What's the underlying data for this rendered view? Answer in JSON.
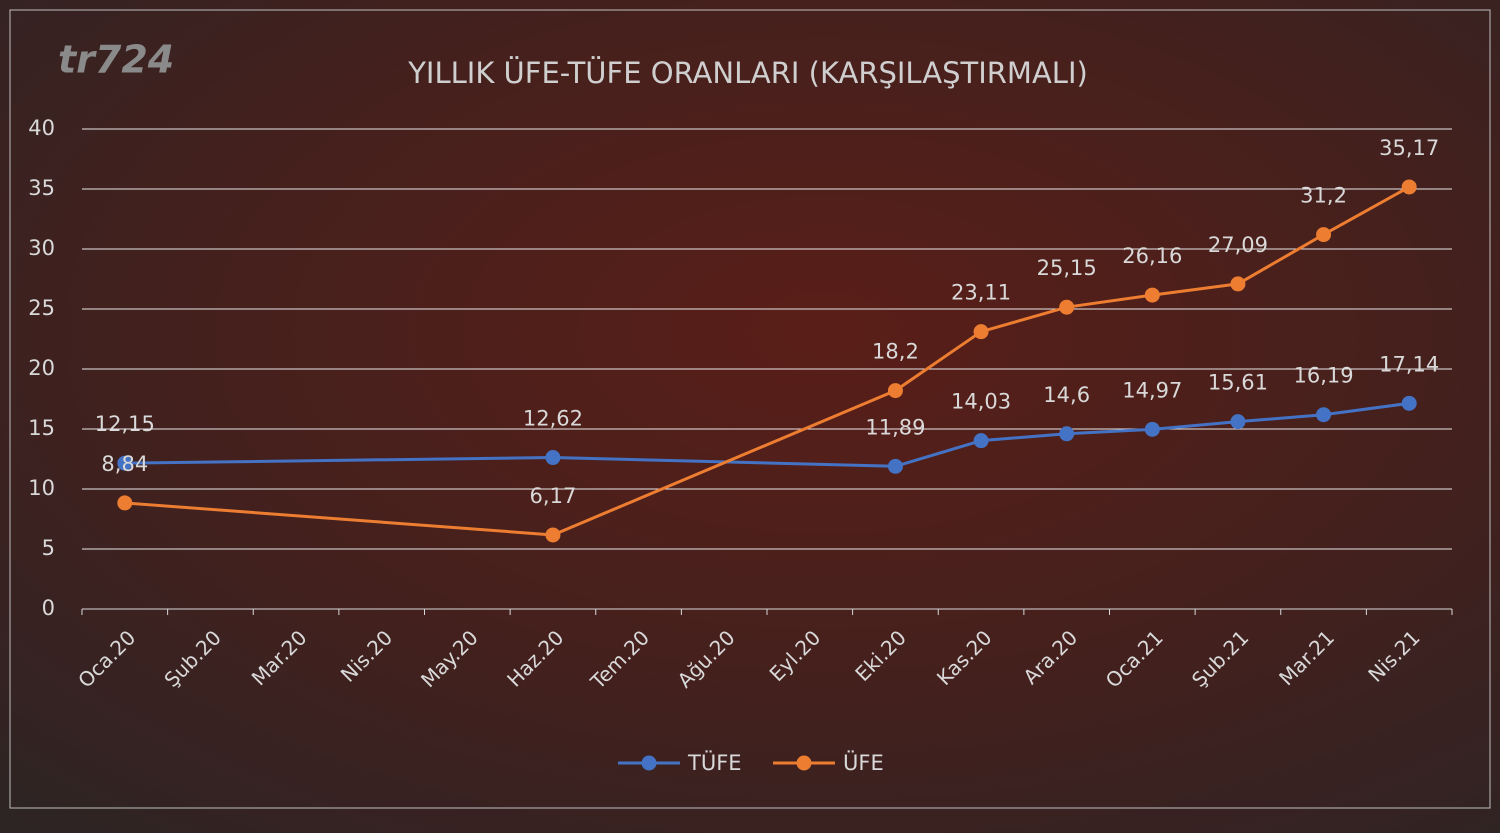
{
  "chart_data": {
    "type": "line",
    "title": "YILLIK ÜFE-TÜFE ORANLARI (KARŞILAŞTIRMALI)",
    "watermark": "tr724",
    "categories": [
      "Oca.20",
      "Şub.20",
      "Mar.20",
      "Nis.20",
      "May.20",
      "Haz.20",
      "Tem.20",
      "Ağu.20",
      "Eyl.20",
      "Eki.20",
      "Kas.20",
      "Ara.20",
      "Oca.21",
      "Şub.21",
      "Mar.21",
      "Nis.21"
    ],
    "series": [
      {
        "name": "TÜFE",
        "color": "#4472c4",
        "values": [
          12.15,
          null,
          null,
          null,
          null,
          12.62,
          null,
          null,
          null,
          11.89,
          14.03,
          14.6,
          14.97,
          15.61,
          16.19,
          17.14
        ],
        "value_labels": [
          "12,15",
          null,
          null,
          null,
          null,
          "12,62",
          null,
          null,
          null,
          "11,89",
          "14,03",
          "14,6",
          "14,97",
          "15,61",
          "16,19",
          "17,14"
        ]
      },
      {
        "name": "ÜFE",
        "color": "#ed7d31",
        "values": [
          8.84,
          null,
          null,
          null,
          null,
          6.17,
          null,
          null,
          null,
          18.2,
          23.11,
          25.15,
          26.16,
          27.09,
          31.2,
          35.17
        ],
        "value_labels": [
          "8,84",
          null,
          null,
          null,
          null,
          "6,17",
          null,
          null,
          null,
          "18,2",
          "23,11",
          "25,15",
          "26,16",
          "27,09",
          "31,2",
          "35,17"
        ]
      }
    ],
    "ylim": [
      0,
      40
    ],
    "yticks": [
      0,
      5,
      10,
      15,
      20,
      25,
      30,
      35,
      40
    ],
    "grid": true,
    "connect_gaps": true,
    "legend": "bottom"
  }
}
